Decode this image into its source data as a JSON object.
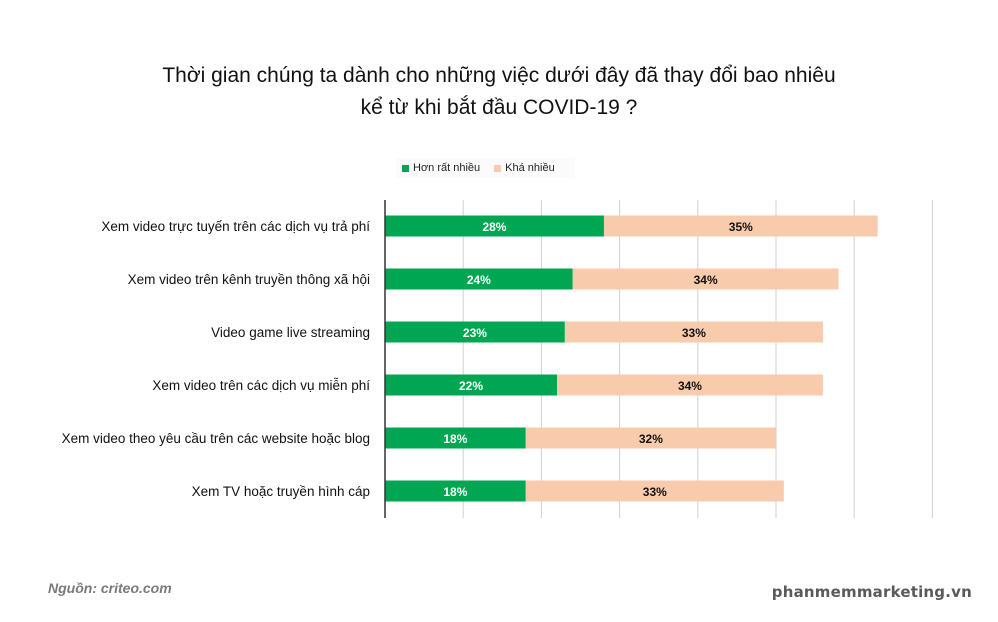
{
  "chart_data": {
    "type": "bar",
    "orientation": "horizontal",
    "stacked": true,
    "title_lines": [
      "Thời gian chúng ta dành cho những việc dưới đây đã thay đổi bao nhiêu",
      "kể từ khi bắt đầu COVID-19 ?"
    ],
    "categories": [
      "Xem video trực tuyến trên các dịch vụ trả phí",
      "Xem video trên kênh truyền thông xã hội",
      "Video game live streaming",
      "Xem video trên các dịch vụ miễn phí",
      "Xem video theo yêu cầu trên các website hoặc blog",
      "Xem TV hoặc truyền hình cáp"
    ],
    "series": [
      {
        "name": "Hơn rất nhiều",
        "color": "#00a651",
        "values": [
          28,
          24,
          23,
          22,
          18,
          18
        ],
        "labels": [
          "28%",
          "24%",
          "23%",
          "22%",
          "18%",
          "18%"
        ]
      },
      {
        "name": "Khá nhiều",
        "color": "#f8cbad",
        "values": [
          35,
          34,
          33,
          34,
          32,
          33
        ],
        "labels": [
          "35%",
          "34%",
          "33%",
          "34%",
          "32%",
          "33%"
        ]
      }
    ],
    "xlim": [
      0,
      70
    ],
    "grid": true,
    "legend_position": "top"
  },
  "footer": {
    "source": "Nguồn: criteo.com",
    "brand": "phanmemmarketing.vn"
  }
}
